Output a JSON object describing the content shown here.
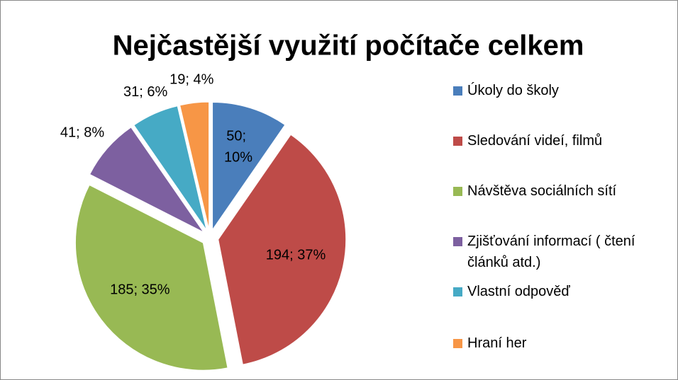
{
  "chart_data": {
    "type": "pie",
    "title": "Nejčastější využití počítače celkem",
    "categories": [
      "Úkoly do školy",
      "Sledování videí, filmů",
      "Návštěva sociálních sítí",
      "Zjišťování informací ( čtení článků atd.)",
      "Vlastní odpověď",
      "Hraní her"
    ],
    "values": [
      50,
      194,
      185,
      41,
      31,
      19
    ],
    "value_labels": [
      "50; 10%",
      "194; 37%",
      "185; 35%",
      "41; 8%",
      "31; 6%",
      "19; 4%"
    ],
    "colors": [
      "#4a7ebb",
      "#be4b48",
      "#98b954",
      "#7d60a0",
      "#46aac5",
      "#f79646"
    ],
    "legend": "right"
  }
}
